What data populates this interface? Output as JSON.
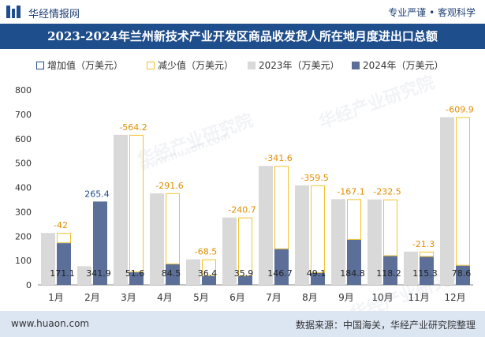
{
  "header": {
    "brand": "华经情报网",
    "tagline": "专业严谨 • 客观科学"
  },
  "title": "2023-2024年兰州新技术产业开发区商品收发货人所在地月度进出口总额",
  "legend": {
    "increase": "增加值（万美元）",
    "decrease": "减少值（万美元）",
    "y2023": "2023年（万美元）",
    "y2024": "2024年（万美元）"
  },
  "colors": {
    "bar2023": "#d9d9d9",
    "bar2024": "#5b6f98",
    "increase_border": "#1f4e8c",
    "decrease_border": "#f2c230",
    "title_bg": "#1f4e8c",
    "footer_bg": "#dce6f3",
    "change_label": "#e08c00"
  },
  "watermark": {
    "text_cn": "华经产业研究院",
    "text_en": "www.huaon.com"
  },
  "footer": {
    "website": "www.huaon.com",
    "source": "数据来源：中国海关，华经产业研究院整理"
  },
  "chart_data": {
    "type": "bar",
    "title": "2023-2024年兰州新技术产业开发区商品收发货人所在地月度进出口总额",
    "categories": [
      "1月",
      "2月",
      "3月",
      "4月",
      "5月",
      "6月",
      "7月",
      "8月",
      "9月",
      "10月",
      "11月",
      "12月"
    ],
    "series": [
      {
        "name": "2023年（万美元）",
        "values": [
          213.1,
          76.5,
          615.8,
          376.1,
          104.9,
          276.6,
          488.3,
          408.6,
          351.9,
          350.7,
          136.6,
          688.5
        ]
      },
      {
        "name": "2024年（万美元）",
        "values": [
          171.1,
          341.9,
          51.6,
          84.5,
          36.4,
          35.9,
          146.7,
          49.1,
          184.8,
          118.2,
          115.3,
          78.6
        ]
      }
    ],
    "change": [
      -42,
      265.4,
      -564.2,
      -291.6,
      -68.5,
      -240.7,
      -341.6,
      -359.5,
      -167.1,
      -232.5,
      -21.3,
      -609.9
    ],
    "change_labels": [
      "-42",
      "265.4",
      "-564.2",
      "-291.6",
      "-68.5",
      "-240.7",
      "-341.6",
      "-359.5",
      "-167.1",
      "-232.5",
      "-21.3",
      "-609.9"
    ],
    "value_labels_2024": [
      "171.1",
      "341.9",
      "51.6",
      "84.5",
      "36.4",
      "35.9",
      "146.7",
      "49.1",
      "184.8",
      "118.2",
      "115.3",
      "78.6"
    ],
    "yticks": [
      0,
      100,
      200,
      300,
      400,
      500,
      600,
      700,
      800
    ],
    "ylim": [
      0,
      800
    ],
    "xlabel": "",
    "ylabel": ""
  }
}
